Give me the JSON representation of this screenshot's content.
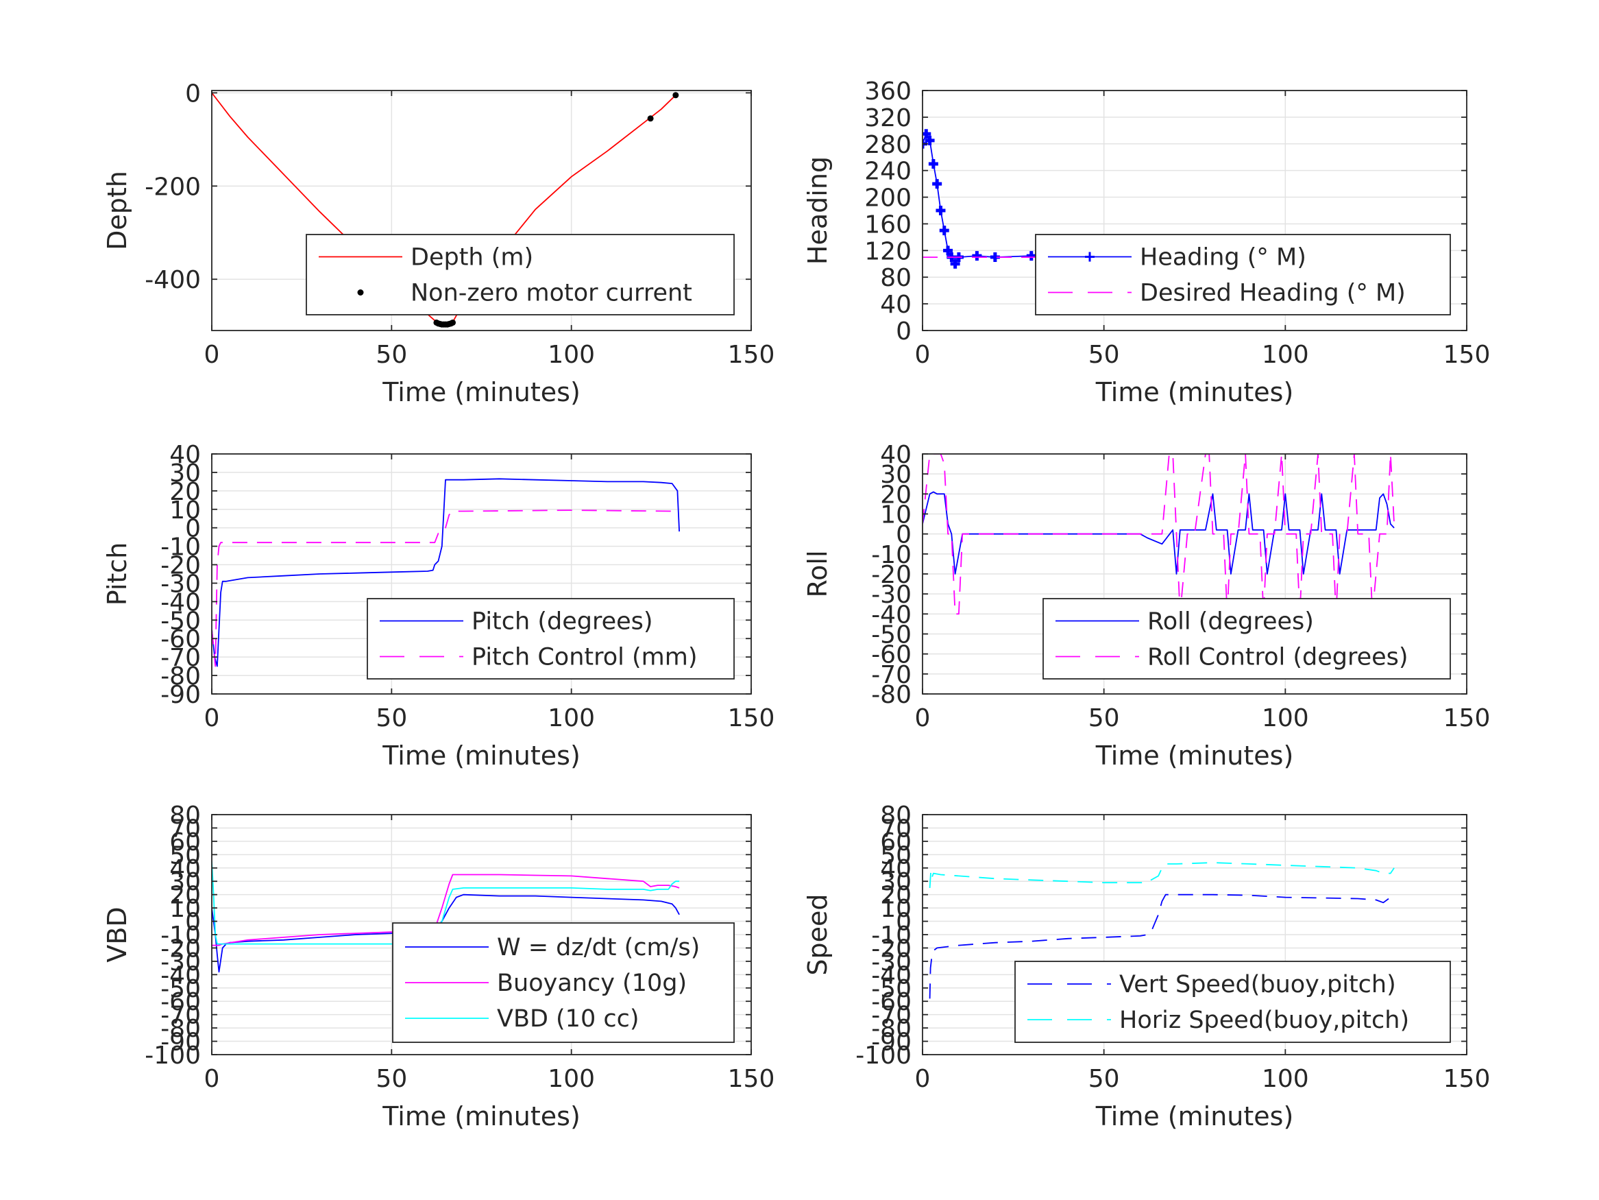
{
  "chart_data": [
    {
      "type": "line",
      "xlabel": "Time (minutes)",
      "ylabel": "Depth",
      "xlim": [
        0,
        150
      ],
      "ylim": [
        -510,
        5
      ],
      "xticks": [
        0,
        50,
        100,
        150
      ],
      "yticks": [
        0,
        -200,
        -400
      ],
      "grid": true,
      "legend_placement": "bottom-right",
      "series": [
        {
          "name": "Depth (m)",
          "style": "solid",
          "color": "#ff0000",
          "marker": "",
          "x": [
            0,
            2,
            5,
            10,
            20,
            30,
            40,
            50,
            60,
            63,
            65,
            67,
            70,
            80,
            90,
            100,
            110,
            120,
            125,
            129
          ],
          "y": [
            0,
            -20,
            -50,
            -95,
            -175,
            -255,
            -330,
            -405,
            -475,
            -495,
            -497,
            -492,
            -450,
            -345,
            -250,
            -180,
            -125,
            -65,
            -35,
            -5
          ]
        },
        {
          "name": "Non-zero motor current",
          "style": "none",
          "color": "#000000",
          "marker": "dot",
          "x": [
            62.5,
            63,
            63.5,
            64,
            64.5,
            65,
            65.5,
            66,
            66.5,
            67,
            122,
            129
          ],
          "y": [
            -493,
            -495,
            -496,
            -497,
            -497,
            -497,
            -497,
            -496,
            -495,
            -493,
            -55,
            -5
          ]
        }
      ]
    },
    {
      "type": "line",
      "xlabel": "Time (minutes)",
      "ylabel": "Heading",
      "xlim": [
        0,
        150
      ],
      "ylim": [
        0,
        360
      ],
      "xticks": [
        0,
        50,
        100,
        150
      ],
      "yticks": [
        0,
        40,
        80,
        120,
        160,
        200,
        240,
        280,
        320,
        360
      ],
      "grid": true,
      "legend_placement": "bottom-right",
      "series": [
        {
          "name": "Heading (° M)",
          "style": "solid",
          "color": "#0000ff",
          "marker": "plus",
          "x": [
            0,
            1,
            2,
            3,
            4,
            5,
            6,
            7,
            8,
            9,
            10,
            15,
            20,
            30,
            40,
            50,
            60,
            62,
            65,
            70,
            80,
            90,
            100,
            110,
            120,
            125,
            130
          ],
          "y": [
            280,
            295,
            285,
            250,
            220,
            180,
            150,
            120,
            110,
            100,
            110,
            112,
            110,
            112,
            113,
            110,
            108,
            115,
            118,
            112,
            110,
            105,
            110,
            108,
            112,
            108,
            105
          ]
        },
        {
          "name": "Desired Heading (° M)",
          "style": "dashed",
          "color": "#ff00ff",
          "marker": "",
          "x": [
            0,
            130
          ],
          "y": [
            110,
            110
          ]
        }
      ]
    },
    {
      "type": "line",
      "xlabel": "Time (minutes)",
      "ylabel": "Pitch",
      "xlim": [
        0,
        150
      ],
      "ylim": [
        -90,
        40
      ],
      "xticks": [
        0,
        50,
        100,
        150
      ],
      "yticks": [
        40,
        30,
        20,
        10,
        0,
        -10,
        -20,
        -30,
        -40,
        -50,
        -60,
        -70,
        -80,
        -90
      ],
      "grid": true,
      "legend_placement": "bottom-right",
      "series": [
        {
          "name": "Pitch (degrees)",
          "style": "solid",
          "color": "#0000ff",
          "marker": "",
          "x": [
            0,
            0.8,
            1.5,
            2,
            2.5,
            3,
            4,
            10,
            20,
            30,
            40,
            50,
            60,
            61.5,
            62,
            63,
            64,
            65,
            66,
            70,
            80,
            90,
            100,
            110,
            120,
            125,
            128,
            129.5,
            130
          ],
          "y": [
            -55,
            -70,
            -75,
            -55,
            -35,
            -29,
            -29,
            -27,
            -26,
            -25,
            -24.5,
            -24,
            -23.5,
            -23,
            -20,
            -18,
            -10,
            26,
            26,
            26,
            26.5,
            26,
            25.5,
            25,
            25,
            24.5,
            24,
            20,
            -2
          ]
        },
        {
          "name": "Pitch Control (mm)",
          "style": "dashed",
          "color": "#ff00ff",
          "marker": "",
          "x": [
            0,
            0.5,
            1,
            1.5,
            2,
            2.5,
            3,
            60,
            61,
            62,
            63,
            64,
            65,
            66,
            67,
            68,
            70,
            100,
            128,
            130
          ],
          "y": [
            -55,
            -65,
            -75,
            -20,
            -10,
            -8,
            -8,
            -8,
            -8,
            -8,
            -3,
            -3,
            0,
            7,
            9,
            9,
            9,
            9.5,
            9,
            9
          ]
        }
      ]
    },
    {
      "type": "line",
      "xlabel": "Time (minutes)",
      "ylabel": "Roll",
      "xlim": [
        0,
        150
      ],
      "ylim": [
        -80,
        40
      ],
      "xticks": [
        0,
        50,
        100,
        150
      ],
      "yticks": [
        40,
        30,
        20,
        10,
        0,
        -10,
        -20,
        -30,
        -40,
        -50,
        -60,
        -70,
        -80
      ],
      "grid": true,
      "legend_placement": "bottom-right",
      "series": [
        {
          "name": "Roll (degrees)",
          "style": "solid",
          "color": "#0000ff",
          "marker": "",
          "x": [
            0,
            2,
            3,
            4,
            6,
            7,
            8,
            9,
            10,
            11,
            20,
            40,
            60,
            62,
            66,
            69,
            70,
            71,
            73,
            74,
            75,
            78,
            80,
            81,
            83,
            84,
            85,
            87,
            89,
            90,
            91,
            93,
            94,
            95,
            97,
            99,
            100,
            101,
            103,
            104,
            105,
            107,
            109,
            110,
            111,
            113,
            114,
            115,
            117,
            119,
            120,
            121,
            123,
            124,
            125,
            126,
            127,
            128,
            129,
            130
          ],
          "y": [
            5,
            20,
            21,
            20,
            20,
            5,
            0,
            -20,
            -10,
            0,
            0,
            0,
            0,
            -2,
            -5,
            2,
            -20,
            2,
            2,
            2,
            2,
            2,
            20,
            2,
            2,
            2,
            -20,
            2,
            2,
            20,
            2,
            2,
            2,
            -20,
            2,
            2,
            20,
            2,
            2,
            2,
            -20,
            2,
            2,
            20,
            2,
            2,
            2,
            -20,
            2,
            2,
            2,
            2,
            2,
            2,
            2,
            18,
            20,
            15,
            5,
            3
          ]
        },
        {
          "name": "Roll Control (degrees)",
          "style": "dashed",
          "color": "#ff00ff",
          "marker": "",
          "x": [
            0,
            2,
            3,
            4,
            5,
            6,
            7,
            8,
            9,
            10,
            11,
            20,
            40,
            60,
            62,
            66,
            68,
            69,
            70,
            71,
            73,
            74,
            75,
            78,
            79,
            80,
            81,
            83,
            84,
            85,
            87,
            89,
            90,
            91,
            93,
            94,
            95,
            97,
            99,
            100,
            101,
            103,
            104,
            105,
            107,
            109,
            110,
            111,
            113,
            114,
            115,
            117,
            119,
            120,
            121,
            123,
            124,
            126,
            128,
            129,
            130
          ],
          "y": [
            5,
            40,
            40,
            40,
            40,
            35,
            0,
            0,
            -40,
            -40,
            0,
            0,
            0,
            0,
            0,
            0,
            40,
            40,
            0,
            -40,
            0,
            0,
            0,
            40,
            40,
            0,
            0,
            0,
            -40,
            0,
            0,
            40,
            0,
            0,
            0,
            -40,
            0,
            0,
            40,
            0,
            0,
            0,
            -40,
            0,
            0,
            40,
            0,
            0,
            0,
            -40,
            0,
            0,
            40,
            0,
            0,
            0,
            -40,
            0,
            0,
            40,
            5
          ]
        }
      ]
    },
    {
      "type": "line",
      "xlabel": "Time (minutes)",
      "ylabel": "VBD",
      "xlim": [
        0,
        150
      ],
      "ylim": [
        -100,
        80
      ],
      "xticks": [
        0,
        50,
        100,
        150
      ],
      "yticks": [
        80,
        70,
        60,
        50,
        40,
        30,
        20,
        10,
        0,
        -10,
        -20,
        -30,
        -40,
        -50,
        -60,
        -70,
        -80,
        -90,
        -100
      ],
      "tick_labels_shown": [
        "80",
        "70",
        "60",
        "50",
        "40",
        "30",
        "20",
        "10",
        "0",
        "-10",
        "-20",
        "-30",
        "-40",
        "-50",
        "-60",
        "-70",
        "-80",
        "-90",
        "-100"
      ],
      "grid": true,
      "legend_placement": "bottom-right",
      "series": [
        {
          "name": "W = dz/dt (cm/s)",
          "style": "solid",
          "color": "#0000ff",
          "marker": "",
          "x": [
            0,
            1,
            1.5,
            2,
            3,
            4,
            5,
            10,
            20,
            30,
            40,
            50,
            60,
            62,
            64,
            66,
            68,
            70,
            80,
            90,
            100,
            110,
            120,
            125,
            128,
            129,
            130
          ],
          "y": [
            10,
            -10,
            -25,
            -38,
            -20,
            -17,
            -16,
            -15,
            -14,
            -12,
            -10,
            -9,
            -8,
            -7,
            0,
            10,
            18,
            20,
            19,
            19,
            18,
            17,
            16,
            15,
            13,
            10,
            5
          ]
        },
        {
          "name": "Buoyancy (10g)",
          "style": "solid",
          "color": "#ff00ff",
          "marker": "",
          "x": [
            0,
            2,
            3,
            10,
            20,
            30,
            40,
            50,
            60,
            62,
            64,
            66,
            67,
            70,
            80,
            90,
            100,
            110,
            120,
            122,
            124,
            127,
            129,
            130
          ],
          "y": [
            -18,
            -18,
            -17,
            -14,
            -12,
            -10,
            -9,
            -8,
            -7,
            -6,
            10,
            28,
            35,
            35,
            35,
            34.5,
            34,
            32,
            30,
            26,
            27,
            27,
            26,
            25
          ]
        },
        {
          "name": "VBD (10 cc)",
          "style": "solid",
          "color": "#00ffff",
          "marker": "",
          "x": [
            0,
            0.5,
            1,
            1.5,
            2,
            10,
            20,
            30,
            40,
            50,
            60,
            61,
            62,
            64,
            66,
            67,
            70,
            80,
            90,
            100,
            110,
            120,
            122,
            124,
            127,
            128,
            129,
            130
          ],
          "y": [
            45,
            20,
            -10,
            -17,
            -17,
            -17,
            -17,
            -17,
            -17,
            -17,
            -17,
            -17,
            -17,
            0,
            18,
            24,
            25,
            25,
            25,
            25,
            24,
            24,
            23,
            24,
            24,
            28,
            30,
            30
          ]
        }
      ]
    },
    {
      "type": "line",
      "xlabel": "Time (minutes)",
      "ylabel": "Speed",
      "xlim": [
        0,
        150
      ],
      "ylim": [
        -100,
        80
      ],
      "xticks": [
        0,
        50,
        100,
        150
      ],
      "yticks": [
        80,
        70,
        60,
        50,
        40,
        30,
        20,
        10,
        0,
        -10,
        -20,
        -30,
        -40,
        -50,
        -60,
        -70,
        -80,
        -90,
        -100
      ],
      "tick_labels_shown": [
        "80",
        "70",
        "60",
        "50",
        "40",
        "30",
        "20",
        "10",
        "0",
        "-10",
        "-20",
        "-30",
        "-40",
        "-50",
        "-60",
        "-70",
        "-80",
        "-90",
        "-100"
      ],
      "grid": true,
      "legend_placement": "bottom-right",
      "series": [
        {
          "name": "Vert Speed(buoy,pitch)",
          "style": "dashed",
          "color": "#0000ff",
          "marker": "",
          "x": [
            2,
            2.2,
            2.5,
            3,
            4,
            10,
            20,
            30,
            40,
            50,
            60,
            62,
            63,
            65,
            66,
            67,
            70,
            80,
            90,
            100,
            110,
            120,
            125,
            127,
            129,
            130
          ],
          "y": [
            -58,
            -35,
            -28,
            -22,
            -20,
            -18,
            -16,
            -15,
            -13,
            -12,
            -11,
            -10,
            -8,
            5,
            15,
            20,
            20,
            20,
            19.5,
            18,
            17.5,
            17,
            16,
            14,
            18,
            19
          ]
        },
        {
          "name": "Horiz Speed(buoy,pitch)",
          "style": "dashed",
          "color": "#00ffff",
          "marker": "",
          "x": [
            2,
            2.3,
            2.6,
            3,
            5,
            10,
            20,
            30,
            40,
            50,
            60,
            62,
            63,
            65,
            66,
            67,
            70,
            80,
            90,
            100,
            110,
            120,
            125,
            127,
            129,
            130
          ],
          "y": [
            25,
            38,
            33,
            36,
            35,
            34,
            32,
            31,
            30,
            29,
            29,
            29,
            31,
            34,
            40,
            43,
            43,
            44,
            43,
            42,
            41,
            40,
            38,
            36,
            36,
            40
          ]
        }
      ]
    }
  ]
}
